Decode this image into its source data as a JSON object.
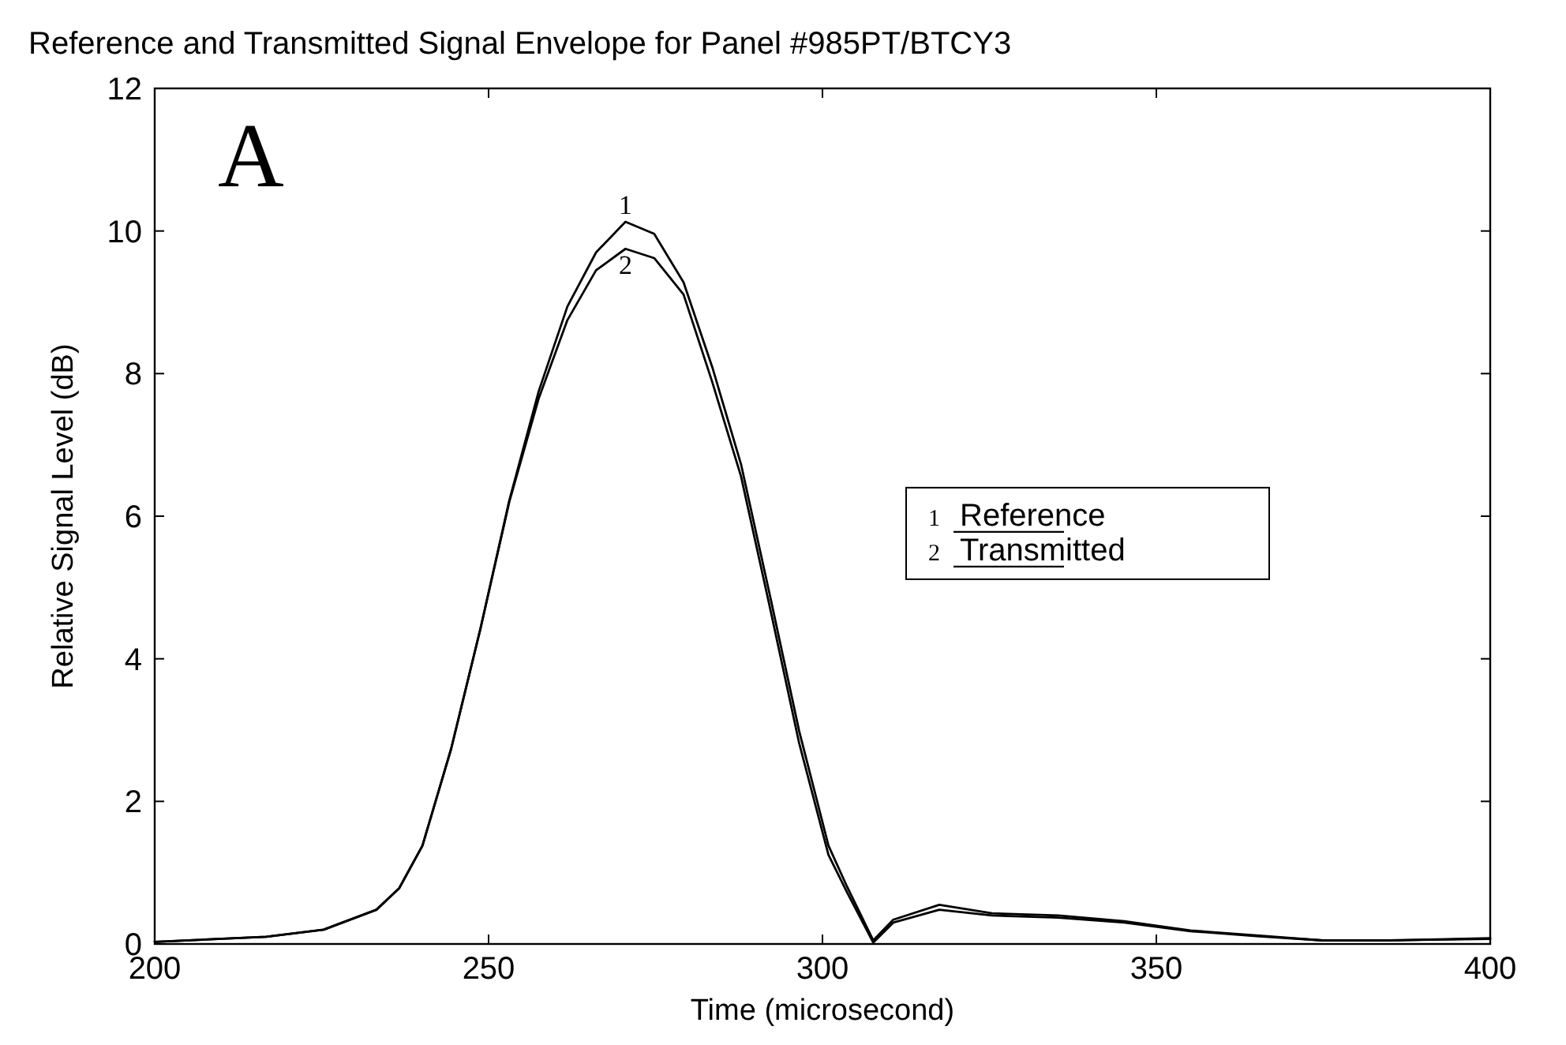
{
  "chart_data": {
    "type": "line",
    "title": "Reference and Transmitted Signal Envelope for Panel #985PT/BTCY3",
    "xlabel": "Time (microsecond)",
    "ylabel": "Relative Signal Level (dB)",
    "xlim": [
      200,
      400
    ],
    "xticks": [
      200,
      250,
      300,
      350,
      400
    ],
    "ylim": [
      0,
      12
    ],
    "yticks": [
      0,
      2,
      4,
      6,
      8,
      10,
      12
    ],
    "grid": false,
    "legend": "right",
    "marker": "none",
    "line_style": "solid",
    "annotations": [
      "A",
      {
        "text": "1",
        "x": 270.5,
        "y": 10.13
      },
      {
        "text": "2",
        "x": 270.5,
        "y": 9.75
      }
    ],
    "series": [
      {
        "name": "Reference",
        "color": "#000000",
        "x": [
          200,
          216.7,
          225.3,
          233.2,
          236.6,
          240.1,
          244.4,
          248.8,
          253.1,
          257.5,
          261.8,
          266.1,
          270.5,
          274.8,
          279.2,
          283.5,
          287.8,
          292.2,
          296.5,
          300.9,
          303.7,
          307.6,
          310.6,
          317.5,
          325.4,
          335.3,
          345.2,
          355.1,
          365,
          374.9,
          384.8,
          400
        ],
        "values": [
          0.03,
          0.1,
          0.2,
          0.48,
          0.78,
          1.38,
          2.74,
          4.43,
          6.22,
          7.75,
          8.94,
          9.7,
          10.13,
          9.96,
          9.28,
          8.09,
          6.73,
          4.86,
          2.99,
          1.38,
          0.8,
          0.05,
          0.34,
          0.55,
          0.43,
          0.4,
          0.32,
          0.19,
          0.12,
          0.05,
          0.05,
          0.08
        ]
      },
      {
        "name": "Transmitted",
        "color": "#000000",
        "x": [
          200,
          216.7,
          225.3,
          233.2,
          236.6,
          240.1,
          244.4,
          248.8,
          253.1,
          257.5,
          261.8,
          266.1,
          270.5,
          274.8,
          279.2,
          283.5,
          287.8,
          292.2,
          296.5,
          300.9,
          303.7,
          307.6,
          310.6,
          317.5,
          325.4,
          335.3,
          345.2,
          355.1,
          365,
          374.9,
          384.8,
          400
        ],
        "values": [
          0.03,
          0.1,
          0.2,
          0.48,
          0.78,
          1.38,
          2.74,
          4.43,
          6.2,
          7.65,
          8.75,
          9.45,
          9.75,
          9.62,
          9.11,
          7.88,
          6.56,
          4.69,
          2.82,
          1.25,
          0.72,
          0.02,
          0.3,
          0.48,
          0.4,
          0.37,
          0.3,
          0.18,
          0.11,
          0.05,
          0.05,
          0.07
        ]
      }
    ]
  }
}
